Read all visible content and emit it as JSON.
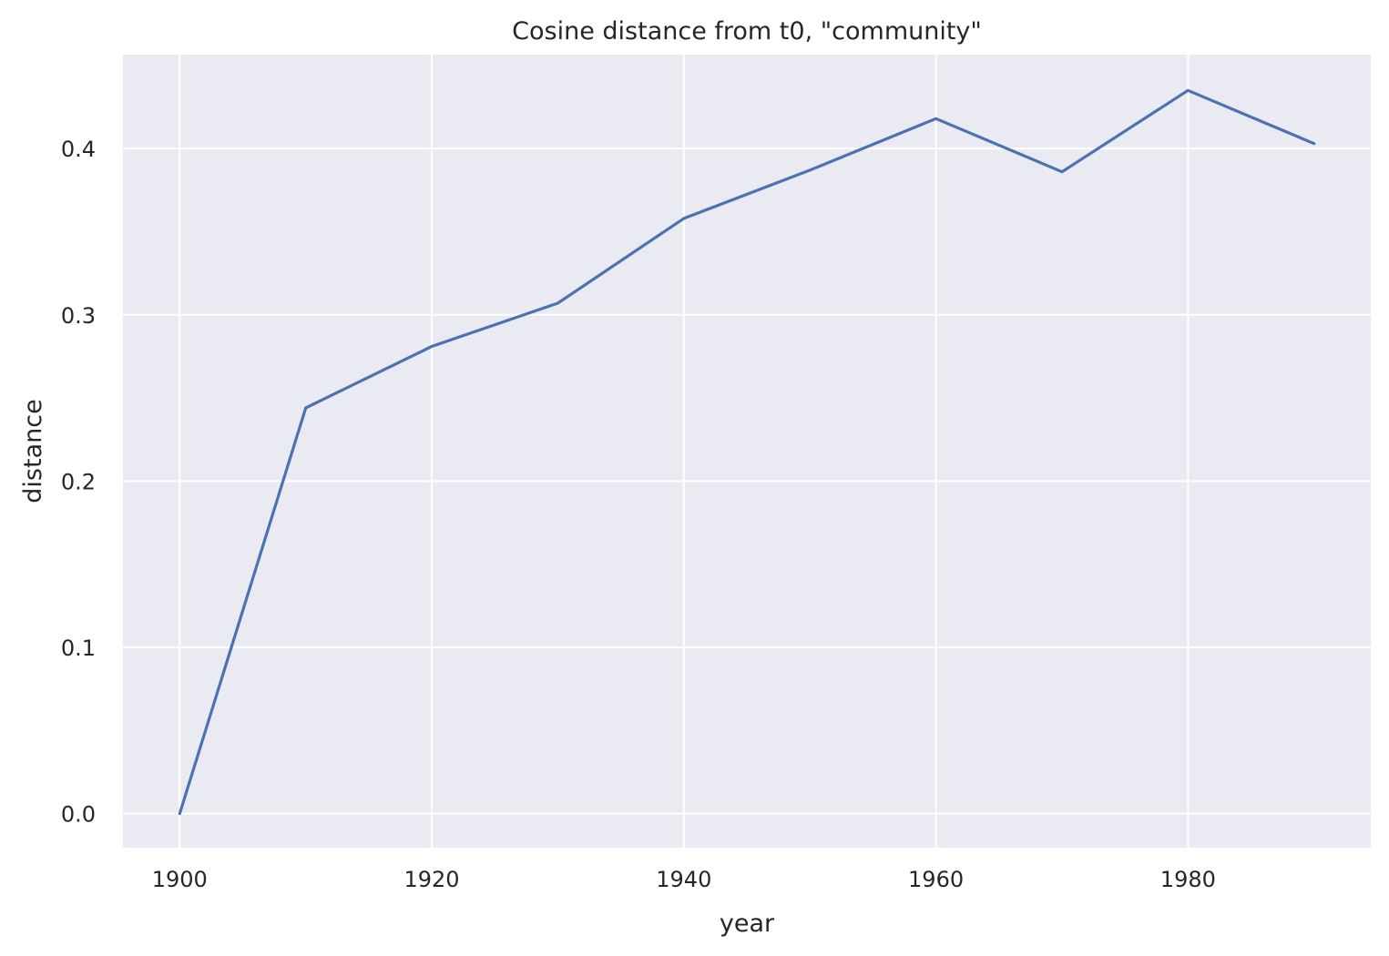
{
  "chart_data": {
    "type": "line",
    "title": "Cosine distance from t0, \"community\"",
    "xlabel": "year",
    "ylabel": "distance",
    "xlim": [
      1895.5,
      1994.5
    ],
    "ylim": [
      -0.0205,
      0.4565
    ],
    "x_ticks": [
      1900,
      1920,
      1940,
      1960,
      1980
    ],
    "y_ticks": [
      0.0,
      0.1,
      0.2,
      0.3,
      0.4
    ],
    "y_tick_labels": [
      "0.0",
      "0.1",
      "0.2",
      "0.3",
      "0.4"
    ],
    "grid": true,
    "series": [
      {
        "color": "#4c72b0",
        "x": [
          1900,
          1910,
          1920,
          1930,
          1940,
          1950,
          1960,
          1970,
          1980,
          1990
        ],
        "y": [
          0.0,
          0.244,
          0.281,
          0.307,
          0.358,
          0.387,
          0.418,
          0.386,
          0.435,
          0.403
        ]
      }
    ]
  },
  "colors": {
    "plot_background": "#eaeaf2",
    "grid": "#ffffff",
    "text": "#262626"
  }
}
